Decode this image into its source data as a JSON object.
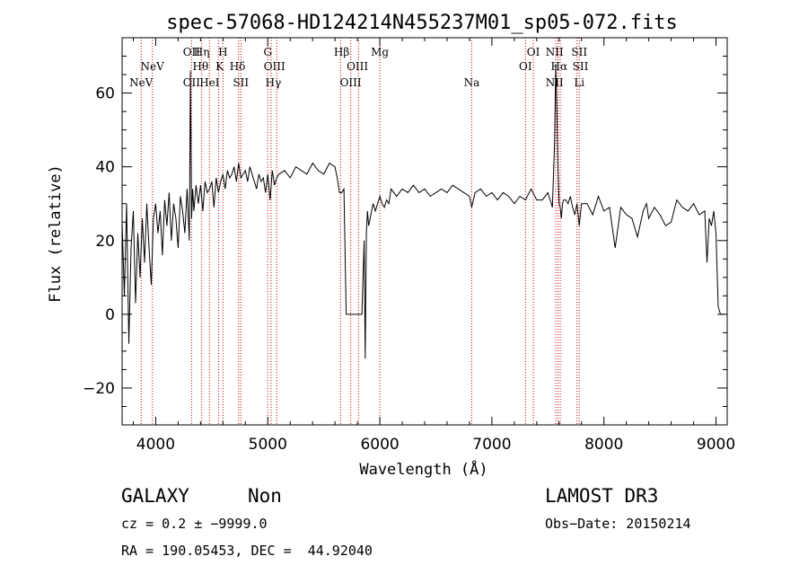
{
  "chart_data": {
    "type": "line",
    "title": "spec-57068-HD124214N455237M01_sp05-072.fits",
    "xlabel": "Wavelength (Å)",
    "ylabel": "Flux (relative)",
    "xlim": [
      3700,
      9100
    ],
    "ylim": [
      -30,
      75
    ],
    "xticks": [
      "4000",
      "5000",
      "6000",
      "7000",
      "8000",
      "9000"
    ],
    "xtick_values": [
      4000,
      5000,
      6000,
      7000,
      8000,
      9000
    ],
    "yticks": [
      "−20",
      "0",
      "20",
      "40",
      "60"
    ],
    "ytick_values": [
      -20,
      0,
      20,
      40,
      60
    ],
    "grid": false,
    "series": [
      {
        "x": [
          3700,
          3720,
          3740,
          3760,
          3780,
          3800,
          3820,
          3840,
          3860,
          3880,
          3900,
          3920,
          3940,
          3960,
          3980,
          4000,
          4020,
          4040,
          4060,
          4080,
          4100,
          4120,
          4140,
          4160,
          4180,
          4200,
          4220,
          4240,
          4260,
          4280,
          4300,
          4310,
          4320,
          4330,
          4340,
          4360,
          4380,
          4400,
          4420,
          4440,
          4460,
          4480,
          4500,
          4520,
          4540,
          4560,
          4580,
          4600,
          4620,
          4640,
          4660,
          4680,
          4700,
          4720,
          4740,
          4760,
          4780,
          4800,
          4820,
          4840,
          4860,
          4880,
          4900,
          4920,
          4940,
          4960,
          4980,
          5000,
          5020,
          5040,
          5060,
          5080,
          5100,
          5150,
          5200,
          5250,
          5300,
          5350,
          5400,
          5450,
          5500,
          5550,
          5600,
          5620,
          5640,
          5660,
          5680,
          5700,
          5720,
          5740,
          5760,
          5780,
          5800,
          5820,
          5840,
          5860,
          5870,
          5880,
          5890,
          5900,
          5920,
          5940,
          5960,
          5980,
          6000,
          6020,
          6040,
          6060,
          6080,
          6100,
          6150,
          6200,
          6250,
          6300,
          6350,
          6400,
          6450,
          6500,
          6550,
          6600,
          6650,
          6700,
          6750,
          6800,
          6820,
          6850,
          6900,
          6950,
          7000,
          7050,
          7100,
          7150,
          7200,
          7250,
          7300,
          7350,
          7400,
          7450,
          7500,
          7520,
          7540,
          7560,
          7570,
          7580,
          7590,
          7600,
          7610,
          7620,
          7630,
          7640,
          7660,
          7680,
          7700,
          7720,
          7740,
          7760,
          7780,
          7800,
          7850,
          7900,
          7950,
          8000,
          8050,
          8100,
          8150,
          8200,
          8250,
          8300,
          8350,
          8380,
          8400,
          8450,
          8500,
          8550,
          8600,
          8650,
          8700,
          8750,
          8800,
          8850,
          8900,
          8920,
          8940,
          8960,
          8980,
          9000,
          9020,
          9040,
          9060,
          9080
        ],
        "y": [
          25,
          5,
          30,
          -8,
          18,
          28,
          3,
          22,
          10,
          26,
          14,
          30,
          18,
          8,
          26,
          30,
          22,
          28,
          16,
          31,
          24,
          33,
          20,
          30,
          26,
          18,
          32,
          28,
          22,
          34,
          20,
          66,
          26,
          34,
          28,
          35,
          30,
          35,
          28,
          36,
          33,
          34,
          36,
          29,
          37,
          33,
          36,
          38,
          34,
          39,
          37,
          38,
          40,
          36,
          41,
          37,
          38,
          39,
          36,
          40,
          38,
          36,
          34,
          38,
          36,
          37,
          33,
          38,
          31,
          39,
          35,
          37,
          38,
          39,
          37,
          40,
          39,
          38,
          41,
          39,
          38,
          41,
          40,
          37,
          33,
          33,
          34,
          0,
          0,
          0,
          0,
          0,
          0,
          0,
          0,
          20,
          -12,
          22,
          28,
          24,
          27,
          30,
          28,
          30,
          32,
          30,
          29,
          31,
          30,
          34,
          32,
          34,
          33,
          35,
          33,
          34,
          32,
          33,
          34,
          33,
          35,
          34,
          33,
          32,
          29,
          33,
          34,
          32,
          33,
          31,
          33,
          32,
          30,
          32,
          31,
          34,
          31,
          31,
          33,
          31,
          29,
          47,
          68,
          55,
          40,
          30,
          29,
          26,
          30,
          31,
          31,
          30,
          32,
          29,
          27,
          30,
          24,
          30,
          30,
          27,
          32,
          28,
          29,
          18,
          29,
          27,
          26,
          21,
          28,
          30,
          26,
          29,
          27,
          24,
          25,
          31,
          29,
          28,
          30,
          27,
          28,
          14,
          26,
          24,
          28,
          22,
          2,
          0,
          0,
          0
        ]
      }
    ],
    "spectral_lines": [
      {
        "label": "NeV",
        "wavelength": 3870,
        "row": 3
      },
      {
        "label": "NeV",
        "wavelength": 3970,
        "row": 2
      },
      {
        "label": "OII",
        "wavelength": 4320,
        "row": 1
      },
      {
        "label": "OII",
        "wavelength": 4320,
        "row": 3
      },
      {
        "label": "Hη",
        "wavelength": 4410,
        "row": 1
      },
      {
        "label": "Hθ",
        "wavelength": 4400,
        "row": 2
      },
      {
        "label": "HeI",
        "wavelength": 4480,
        "row": 3
      },
      {
        "label": "H",
        "wavelength": 4600,
        "row": 1
      },
      {
        "label": "K",
        "wavelength": 4570,
        "row": 2
      },
      {
        "label": "Hδ",
        "wavelength": 4730,
        "row": 2
      },
      {
        "label": "SII",
        "wavelength": 4760,
        "row": 3
      },
      {
        "label": "G",
        "wavelength": 5000,
        "row": 1
      },
      {
        "label": "OIII",
        "wavelength": 5060,
        "row": 2
      },
      {
        "label": "Hγ",
        "wavelength": 5050,
        "row": 3
      },
      {
        "label": "Hβ",
        "wavelength": 5660,
        "row": 1
      },
      {
        "label": "OIII",
        "wavelength": 5800,
        "row": 2
      },
      {
        "label": "OIII",
        "wavelength": 5740,
        "row": 3
      },
      {
        "label": "Mg",
        "wavelength": 6000,
        "row": 1
      },
      {
        "label": "Na",
        "wavelength": 6820,
        "row": 3
      },
      {
        "label": "OI",
        "wavelength": 7370,
        "row": 1
      },
      {
        "label": "OI",
        "wavelength": 7300,
        "row": 2
      },
      {
        "label": "NII",
        "wavelength": 7560,
        "row": 1
      },
      {
        "label": "Hα",
        "wavelength": 7600,
        "row": 2
      },
      {
        "label": "NII",
        "wavelength": 7560,
        "row": 3
      },
      {
        "label": "SII",
        "wavelength": 7780,
        "row": 1
      },
      {
        "label": "SII",
        "wavelength": 7790,
        "row": 2
      },
      {
        "label": "Li",
        "wavelength": 7780,
        "row": 3
      }
    ],
    "marker_wavelengths": [
      3870,
      3970,
      4320,
      4410,
      4480,
      4560,
      4600,
      4740,
      4760,
      5000,
      5030,
      5080,
      5650,
      5740,
      5810,
      6000,
      6820,
      7300,
      7370,
      7570,
      7590,
      7610,
      7760,
      7780
    ]
  },
  "info": {
    "class": "GALAXY",
    "subclass": "Non",
    "survey": "LAMOST DR3",
    "cz": "cz = 0.2 ± −9999.0",
    "obs_date": "Obs−Date: 20150214",
    "coords": "RA = 190.05453, DEC =  44.92040"
  },
  "colors": {
    "line_markers": "#cc0000",
    "spectrum": "#000000"
  }
}
